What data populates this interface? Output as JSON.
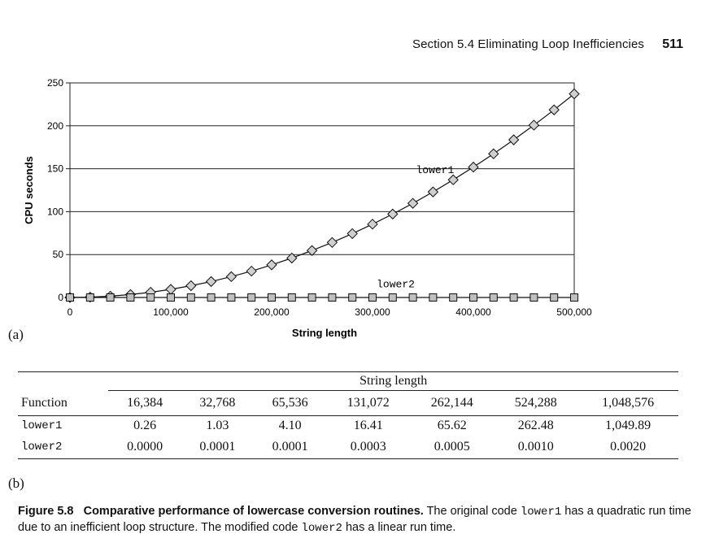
{
  "header": {
    "section": "Section 5.4  Eliminating Loop Inefficiencies",
    "page": "511"
  },
  "panel_labels": {
    "a": "(a)",
    "b": "(b)"
  },
  "chart_data": {
    "type": "line",
    "xlabel": "String length",
    "ylabel": "CPU seconds",
    "xlim": [
      0,
      500000
    ],
    "ylim": [
      0,
      250
    ],
    "x_ticks": [
      "0",
      "100,000",
      "200,000",
      "300,000",
      "400,000",
      "500,000"
    ],
    "y_ticks": [
      "0",
      "50",
      "100",
      "150",
      "200",
      "250"
    ],
    "grid": "horizontal",
    "x": [
      0,
      20000,
      40000,
      60000,
      80000,
      100000,
      120000,
      140000,
      160000,
      180000,
      200000,
      220000,
      240000,
      260000,
      280000,
      300000,
      320000,
      340000,
      360000,
      380000,
      400000,
      420000,
      440000,
      460000,
      480000,
      500000
    ],
    "series": [
      {
        "name": "lower1",
        "marker": "diamond",
        "values": [
          0,
          0.4,
          1.5,
          3.4,
          6.1,
          9.5,
          13.7,
          18.6,
          24.3,
          30.7,
          38,
          45.9,
          54.7,
          64.1,
          74.4,
          85.4,
          97.2,
          109.7,
          123,
          137.1,
          151.9,
          167.4,
          183.7,
          200.8,
          218.6,
          237.2
        ]
      },
      {
        "name": "lower2",
        "marker": "square",
        "values": [
          0,
          0,
          0,
          0,
          0,
          0,
          0,
          0,
          0,
          0,
          0,
          0,
          0,
          0,
          0,
          0,
          0,
          0,
          0,
          0,
          0,
          0,
          0,
          0,
          0,
          0
        ]
      }
    ]
  },
  "table": {
    "span_header": "String length",
    "columns": [
      "Function",
      "16,384",
      "32,768",
      "65,536",
      "131,072",
      "262,144",
      "524,288",
      "1,048,576"
    ],
    "rows": [
      [
        "lower1",
        "0.26",
        "1.03",
        "4.10",
        "16.41",
        "65.62",
        "262.48",
        "1,049.89"
      ],
      [
        "lower2",
        "0.0000",
        "0.0001",
        "0.0001",
        "0.0003",
        "0.0005",
        "0.0010",
        "0.0020"
      ]
    ]
  },
  "caption": {
    "label": "Figure 5.8",
    "title": "Comparative performance of lowercase conversion routines.",
    "text1": " The original code ",
    "code1": "lower1",
    "text2": " has a quadratic run time due to an inefficient loop structure. The modified code ",
    "code2": "lower2",
    "text3": " has a linear run time."
  }
}
